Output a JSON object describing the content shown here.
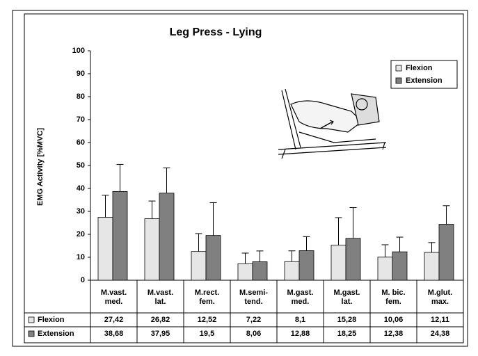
{
  "chart_data": {
    "type": "bar",
    "title": "Leg Press - Lying",
    "y_label": "EMG Activity [%MVC]",
    "categories": [
      "M.vast.\nmed.",
      "M.vast.\nlat.",
      "M.rect.\nfem.",
      "M.semi-\ntend.",
      "M.gast.\nmed.",
      "M.gast.\nlat.",
      "M. bic.\nfem.",
      "M.glut.\nmax."
    ],
    "series": [
      {
        "name": "Flexion",
        "color": "#e6e6e6",
        "values": [
          27.42,
          26.82,
          12.52,
          7.22,
          8.1,
          15.28,
          10.06,
          12.11
        ],
        "value_labels": [
          "27,42",
          "26,82",
          "12,52",
          "7,22",
          "8,1",
          "15,28",
          "10,06",
          "12,11"
        ],
        "errors": [
          9.6,
          7.7,
          7.8,
          4.6,
          4.7,
          12,
          5.4,
          4.3
        ]
      },
      {
        "name": "Extension",
        "color": "#808080",
        "values": [
          38.68,
          37.95,
          19.5,
          8.06,
          12.88,
          18.25,
          12.38,
          24.38
        ],
        "value_labels": [
          "38,68",
          "37,95",
          "19,5",
          "8,06",
          "12,88",
          "18,25",
          "12,38",
          "24,38"
        ],
        "errors": [
          11.8,
          11,
          14.3,
          4.7,
          6.1,
          13.4,
          6.4,
          8.1
        ]
      }
    ],
    "ylim": [
      0,
      100
    ],
    "yticks": [
      0,
      10,
      20,
      30,
      40,
      50,
      60,
      70,
      80,
      90,
      100
    ],
    "grid": false,
    "legend": "top-right"
  }
}
